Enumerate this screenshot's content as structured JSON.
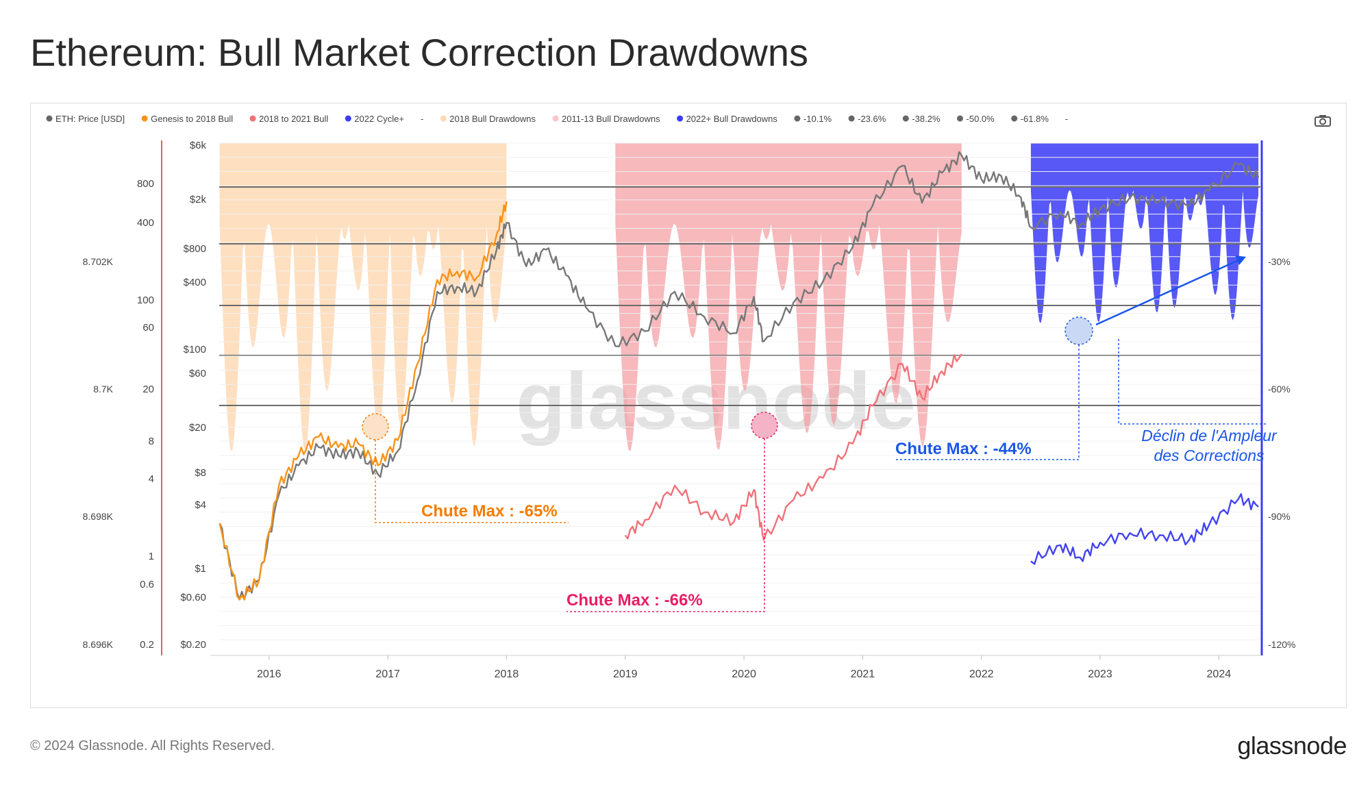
{
  "title": "Ethereum: Bull Market Correction Drawdowns",
  "footer": {
    "copyright": "© 2024 Glassnode. All Rights Reserved.",
    "logo": "glassnode"
  },
  "watermark": "glassnode",
  "icons": {
    "camera": "camera-icon"
  },
  "chart_data": {
    "type": "line",
    "x_ticks": [
      "2016",
      "2017",
      "2018",
      "2019",
      "2020",
      "2021",
      "2022",
      "2023",
      "2024"
    ],
    "legend": [
      {
        "label": "ETH: Price [USD]",
        "color": "#666666"
      },
      {
        "label": "Genesis to 2018 Bull",
        "color": "#f7931a"
      },
      {
        "label": "2018 to 2021 Bull",
        "color": "#f07178"
      },
      {
        "label": "2022 Cycle+",
        "color": "#3b3bf5"
      },
      {
        "label": "-",
        "color": null
      },
      {
        "label": "2018 Bull Drawdowns",
        "color": "#fdd9b5"
      },
      {
        "label": "2011-13 Bull Drawdowns",
        "color": "#f8c8cc"
      },
      {
        "label": "2022+ Bull Drawdowns",
        "color": "#3b3bf5"
      },
      {
        "label": "-10.1%",
        "color": "#666666"
      },
      {
        "label": "-23.6%",
        "color": "#666666"
      },
      {
        "label": "-38.2%",
        "color": "#666666"
      },
      {
        "label": "-50.0%",
        "color": "#666666"
      },
      {
        "label": "-61.8%",
        "color": "#666666"
      },
      {
        "label": "-",
        "color": null
      }
    ],
    "axis_far_left": [
      "8.702K",
      "8.7K",
      "8.698K",
      "8.696K"
    ],
    "axis_mid_left": [
      "800",
      "400",
      "100",
      "60",
      "20",
      "8",
      "4",
      "1",
      "0.6",
      "0.2"
    ],
    "axis_price": [
      "$6k",
      "$2k",
      "$800",
      "$400",
      "$100",
      "$60",
      "$20",
      "$8",
      "$4",
      "$1",
      "$0.60",
      "$0.20"
    ],
    "axis_right": [
      "-30%",
      "-60%",
      "-90%",
      "-120%"
    ],
    "fib_levels_pct": [
      -10.1,
      -23.6,
      -38.2,
      -50.0,
      -61.8
    ],
    "annotations": [
      {
        "text": "Chute Max : -65%",
        "color": "#f57c00",
        "value_pct": -65
      },
      {
        "text": "Chute Max : -66%",
        "color": "#e91e63",
        "value_pct": -66
      },
      {
        "text": "Chute Max : -44%",
        "color": "#1a56e8",
        "value_pct": -44
      },
      {
        "text_lines": [
          "Déclin de l'Ampleur",
          "des Corrections"
        ],
        "color": "#1a56e8"
      }
    ],
    "series": [
      {
        "name": "ETH: Price [USD]",
        "color": "#777777",
        "points": [
          [
            "2015-08",
            2.8
          ],
          [
            "2015-10",
            0.6
          ],
          [
            "2015-12",
            0.9
          ],
          [
            "2016-02",
            5
          ],
          [
            "2016-04",
            9
          ],
          [
            "2016-06",
            13
          ],
          [
            "2016-08",
            11
          ],
          [
            "2016-10",
            12
          ],
          [
            "2016-12",
            7.5
          ],
          [
            "2017-02",
            12
          ],
          [
            "2017-04",
            50
          ],
          [
            "2017-06",
            300
          ],
          [
            "2017-08",
            330
          ],
          [
            "2017-10",
            300
          ],
          [
            "2017-12",
            700
          ],
          [
            "2018-01",
            1200
          ],
          [
            "2018-03",
            500
          ],
          [
            "2018-05",
            700
          ],
          [
            "2018-07",
            420
          ],
          [
            "2018-09",
            220
          ],
          [
            "2018-12",
            100
          ],
          [
            "2019-03",
            135
          ],
          [
            "2019-06",
            300
          ],
          [
            "2019-09",
            180
          ],
          [
            "2019-12",
            130
          ],
          [
            "2020-02",
            270
          ],
          [
            "2020-03",
            110
          ],
          [
            "2020-06",
            240
          ],
          [
            "2020-09",
            370
          ],
          [
            "2020-12",
            740
          ],
          [
            "2021-02",
            1700
          ],
          [
            "2021-05",
            3800
          ],
          [
            "2021-07",
            1800
          ],
          [
            "2021-09",
            3300
          ],
          [
            "2021-11",
            4700
          ],
          [
            "2022-01",
            2900
          ],
          [
            "2022-03",
            3100
          ],
          [
            "2022-05",
            2000
          ],
          [
            "2022-06",
            1100
          ],
          [
            "2022-09",
            1500
          ],
          [
            "2022-11",
            1150
          ],
          [
            "2023-01",
            1600
          ],
          [
            "2023-04",
            2000
          ],
          [
            "2023-07",
            1850
          ],
          [
            "2023-10",
            1700
          ],
          [
            "2023-12",
            2300
          ],
          [
            "2024-03",
            3900
          ],
          [
            "2024-05",
            3000
          ]
        ]
      },
      {
        "name": "Genesis to 2018 Bull",
        "color": "#f7931a",
        "points": [
          [
            "2015-08",
            2.8
          ],
          [
            "2015-10",
            0.6
          ],
          [
            "2015-12",
            0.9
          ],
          [
            "2016-02",
            6
          ],
          [
            "2016-04",
            11
          ],
          [
            "2016-06",
            16
          ],
          [
            "2016-08",
            13
          ],
          [
            "2016-10",
            14
          ],
          [
            "2016-12",
            9
          ],
          [
            "2017-02",
            15
          ],
          [
            "2017-04",
            70
          ],
          [
            "2017-06",
            380
          ],
          [
            "2017-08",
            450
          ],
          [
            "2017-10",
            400
          ],
          [
            "2017-12",
            950
          ],
          [
            "2018-01",
            1850
          ]
        ]
      },
      {
        "name": "2018 to 2021 Bull",
        "color": "#f07178",
        "points": [
          [
            "2019-01",
            2.2
          ],
          [
            "2019-03",
            3
          ],
          [
            "2019-06",
            6
          ],
          [
            "2019-09",
            3.5
          ],
          [
            "2019-12",
            2.9
          ],
          [
            "2020-02",
            5.5
          ],
          [
            "2020-03",
            2
          ],
          [
            "2020-06",
            4.5
          ],
          [
            "2020-09",
            7
          ],
          [
            "2020-12",
            14
          ],
          [
            "2021-02",
            30
          ],
          [
            "2021-05",
            70
          ],
          [
            "2021-07",
            35
          ],
          [
            "2021-09",
            60
          ],
          [
            "2021-11",
            85
          ]
        ]
      },
      {
        "name": "2022 Cycle+",
        "color": "#4343f0",
        "points": [
          [
            "2022-06",
            1.3
          ],
          [
            "2022-09",
            1.8
          ],
          [
            "2022-11",
            1.4
          ],
          [
            "2023-01",
            1.9
          ],
          [
            "2023-04",
            2.3
          ],
          [
            "2023-07",
            2.2
          ],
          [
            "2023-10",
            2.0
          ],
          [
            "2023-12",
            2.7
          ],
          [
            "2024-03",
            4.6
          ],
          [
            "2024-05",
            3.9
          ]
        ]
      }
    ],
    "drawdown_bands": [
      {
        "name": "2018 Bull Drawdowns",
        "color": "#fdd2a5",
        "start": "2015-08",
        "end": "2018-01"
      },
      {
        "name": "2011-13 Bull Drawdowns",
        "color": "#f49ba0",
        "start": "2018-12",
        "end": "2021-11"
      },
      {
        "name": "2022+ Bull Drawdowns",
        "color": "#3b3bf5",
        "start": "2022-06",
        "end": "2024-05"
      }
    ]
  }
}
